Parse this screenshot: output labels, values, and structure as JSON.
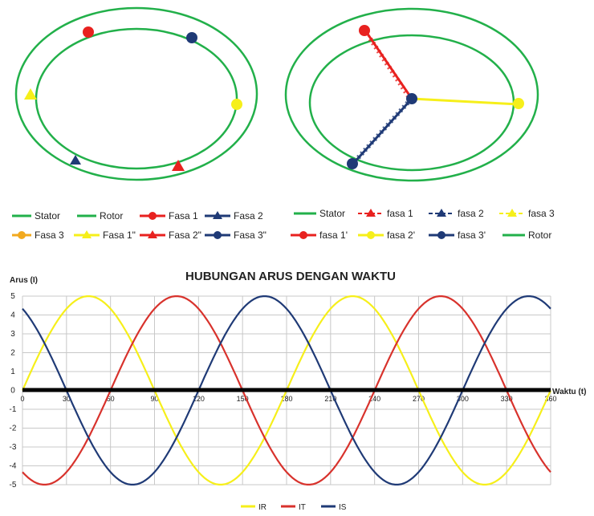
{
  "chart_data": [
    {
      "type": "diagram",
      "panel": "left",
      "shapes": [
        "Stator",
        "Rotor"
      ],
      "markers": [
        {
          "label": "Fasa 1",
          "shape": "circle",
          "color": "#e8211f"
        },
        {
          "label": "Fasa 2",
          "shape": "triangle",
          "color": "#1f3a76"
        },
        {
          "label": "Fasa 3",
          "shape": "circle",
          "color": "#f2a91e"
        },
        {
          "label": "Fasa 1\"",
          "shape": "triangle",
          "color": "#f6ef1a"
        },
        {
          "label": "Fasa 2\"",
          "shape": "triangle",
          "color": "#e8211f"
        },
        {
          "label": "Fasa 3\"",
          "shape": "circle",
          "color": "#1f3a76"
        }
      ],
      "legend": [
        "Stator",
        "Rotor",
        "Fasa 1",
        "Fasa 2",
        "Fasa 3",
        "Fasa 1\"",
        "Fasa 2\"",
        "Fasa 3\""
      ]
    },
    {
      "type": "diagram",
      "panel": "right",
      "shapes": [
        "Stator",
        "Rotor"
      ],
      "vectors": [
        {
          "label": "fasa 1",
          "color": "#e8211f",
          "angle_deg": 124
        },
        {
          "label": "fasa 2",
          "color": "#1f3a76",
          "angle_deg": 227
        },
        {
          "label": "fasa 3",
          "color": "#f6ef1a",
          "angle_deg": 358
        }
      ],
      "legend": [
        "Stator",
        "fasa 1",
        "fasa 2",
        "fasa 3",
        "fasa 1'",
        "fasa 2'",
        "fasa 3'",
        "Rotor"
      ]
    },
    {
      "type": "line",
      "title": "HUBUNGAN ARUS DENGAN WAKTU",
      "xlabel": "Waktu (t)",
      "ylabel": "Arus (I)",
      "xlim": [
        0,
        360
      ],
      "ylim": [
        -5,
        5
      ],
      "xticks": [
        0,
        30,
        60,
        90,
        120,
        150,
        180,
        210,
        240,
        270,
        300,
        330,
        360
      ],
      "yticks": [
        5,
        4,
        3,
        2,
        1,
        0,
        -1,
        -2,
        -3,
        -4,
        -5
      ],
      "grid": true,
      "legend_position": "bottom",
      "amplitude": 5,
      "series": [
        {
          "name": "IR",
          "color": "#f6ef1a",
          "phase_deg": 0,
          "peak_x": 45,
          "period": 180
        },
        {
          "name": "IT",
          "color": "#d8322c",
          "phase_deg": 60,
          "peak_x": 105,
          "period": 180
        },
        {
          "name": "IS",
          "color": "#1f3a76",
          "phase_deg": 120,
          "peak_x": 165,
          "period": 180
        }
      ]
    }
  ],
  "colors": {
    "stator": "#22b04a",
    "rotor": "#22b04a",
    "red": "#e8211f",
    "navy": "#1f3a76",
    "yellow": "#f6ef1a",
    "orange": "#f2a91e",
    "axis": "#000000",
    "grid": "#c8c8c8"
  }
}
